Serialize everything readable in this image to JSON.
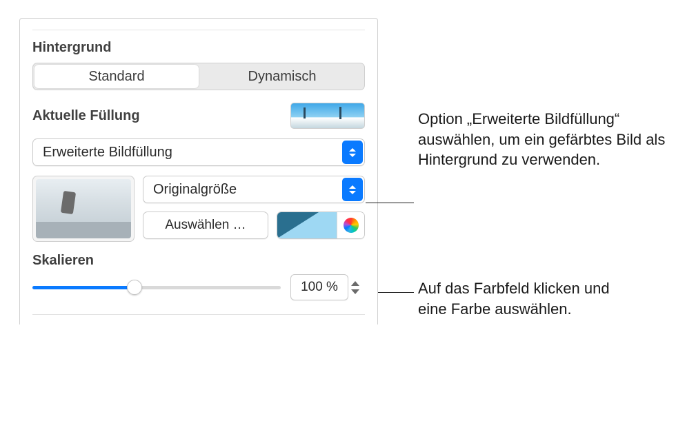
{
  "panel": {
    "section_title": "Hintergrund",
    "tabs": {
      "standard": "Standard",
      "dynamic": "Dynamisch"
    },
    "current_fill_label": "Aktuelle Füllung",
    "fill_type": "Erweiterte Bildfüllung",
    "scale_mode": "Originalgröße",
    "choose_button": "Auswählen …",
    "scale_label": "Skalieren",
    "scale_value": "100 %",
    "scale_percent": 41,
    "colors": {
      "accent": "#0a7aff",
      "swatch_light": "#9ed8f3",
      "swatch_dark": "#2a6f8f"
    }
  },
  "callouts": {
    "fill_type": "Option „Erweiterte Bildfüllung“ auswählen, um ein gefärbtes Bild als Hintergrund zu verwenden.",
    "color_well": "Auf das Farbfeld klicken und eine Farbe auswählen."
  }
}
